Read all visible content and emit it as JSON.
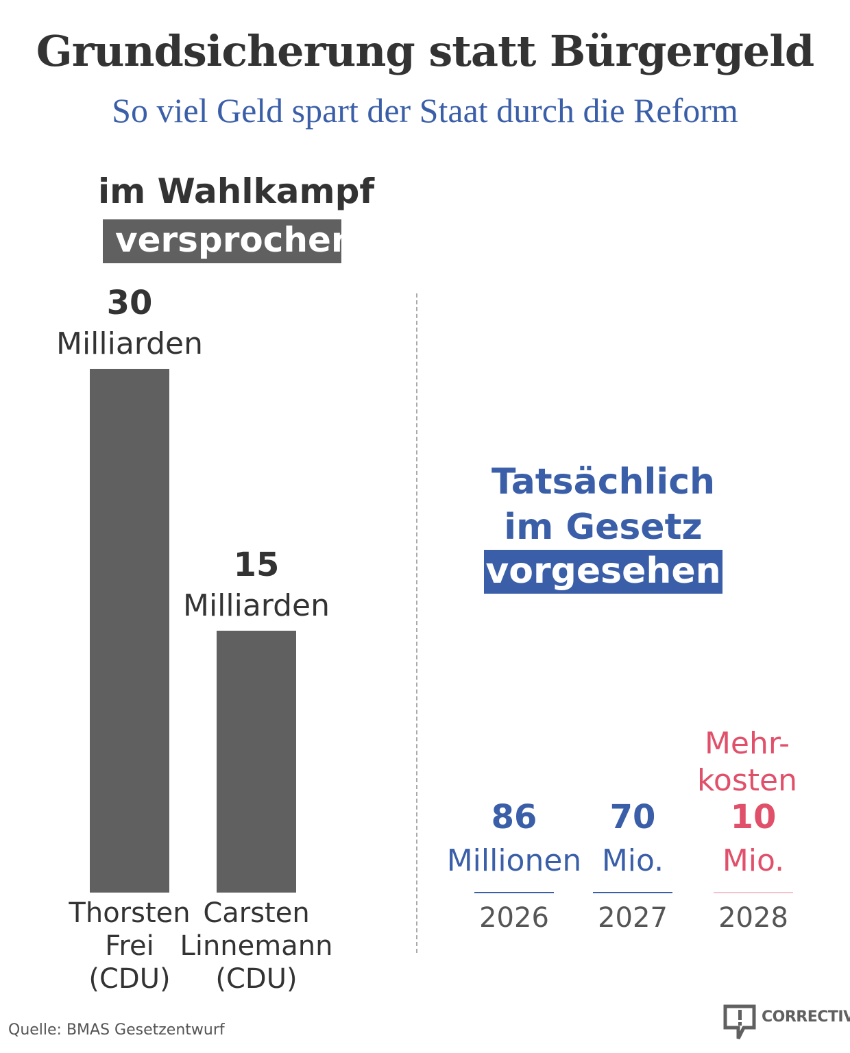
{
  "title": "Grundsicherung statt Bürgergeld",
  "subtitle": "So viel Geld spart der Staat durch die Reform",
  "colors": {
    "gray": "#606060",
    "blue": "#3a5fa8",
    "pink": "#e0506a",
    "title": "#333333"
  },
  "left": {
    "heading_line1": "im Wahlkampf",
    "heading_highlight": "versprochen"
  },
  "right": {
    "heading_line1": "Tatsächlich",
    "heading_line2": "im Gesetz",
    "heading_highlight": "vorgesehen",
    "note_line1": "Mehr-",
    "note_line2": "kosten"
  },
  "chart_data": [
    {
      "type": "bar",
      "categories": [
        "Thorsten Frei (CDU)",
        "Carsten Linnemann (CDU)"
      ],
      "name_lines": [
        [
          "Thorsten",
          "Frei",
          "(CDU)"
        ],
        [
          "Carsten",
          "Linnemann",
          "(CDU)"
        ]
      ],
      "values": [
        30,
        15
      ],
      "value_labels": [
        "30",
        "15"
      ],
      "unit_labels": [
        "Milliarden",
        "Milliarden"
      ],
      "unit": "Milliarden Euro"
    },
    {
      "type": "bar",
      "categories": [
        "2026",
        "2027",
        "2028"
      ],
      "values_millionen": [
        86,
        70,
        -10
      ],
      "value_labels": [
        "86",
        "70",
        "10"
      ],
      "unit_labels": [
        "Millionen",
        "Mio.",
        "Mio."
      ],
      "colors": [
        "#3a5fa8",
        "#3a5fa8",
        "#e0506a"
      ]
    }
  ],
  "footer": {
    "source": "Quelle: BMAS Gesetzentwurf",
    "logo": "CORRECTIV"
  }
}
